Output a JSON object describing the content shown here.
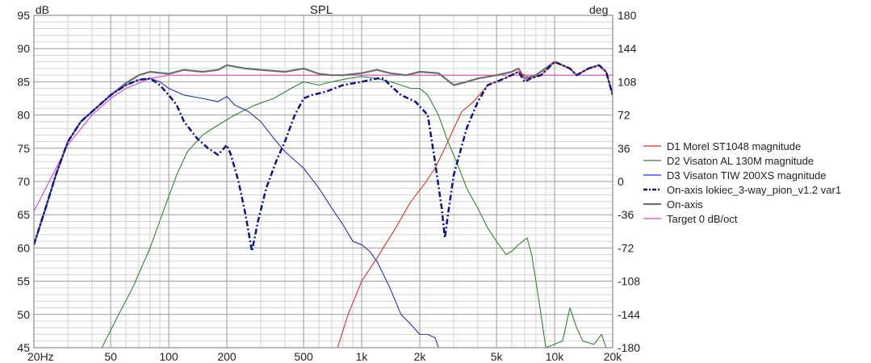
{
  "chart_data": {
    "type": "line",
    "title": "SPL",
    "left_unit": "dB",
    "right_unit": "deg",
    "x_scale": "log",
    "xlim": [
      20,
      20000
    ],
    "ylim": [
      45,
      95
    ],
    "y2lim": [
      -180,
      180
    ],
    "x_ticks": [
      {
        "value": 20,
        "label": "20Hz"
      },
      {
        "value": 50,
        "label": "50"
      },
      {
        "value": 100,
        "label": "100"
      },
      {
        "value": 200,
        "label": "200"
      },
      {
        "value": 500,
        "label": "500"
      },
      {
        "value": 1000,
        "label": "1k"
      },
      {
        "value": 2000,
        "label": "2k"
      },
      {
        "value": 5000,
        "label": "5k"
      },
      {
        "value": 10000,
        "label": "10k"
      },
      {
        "value": 20000,
        "label": "20k"
      }
    ],
    "y_ticks": [
      "95",
      "90",
      "85",
      "80",
      "75",
      "70",
      "65",
      "60",
      "55",
      "50",
      "45"
    ],
    "y2_ticks": [
      "180",
      "144",
      "108",
      "72",
      "36",
      "0",
      "-36",
      "-72",
      "-108",
      "-144",
      "-180"
    ],
    "grid": true,
    "legend_position": "right",
    "colors": {
      "d1": "#e0301e",
      "d2": "#2a8a2a",
      "d3": "#2030c8",
      "onaxis_var": "#0a1490",
      "onaxis": "#6e6e6e",
      "target": "#e040c8",
      "grid_major": "#9a9a9a",
      "grid_minor": "#d4d4d4"
    },
    "series": [
      {
        "name": "D1 Morel ST1048 magnitude",
        "color": "#e0301e",
        "style": "solid",
        "points": [
          [
            750,
            45
          ],
          [
            850,
            50
          ],
          [
            1000,
            55
          ],
          [
            1200,
            58.5
          ],
          [
            1500,
            63
          ],
          [
            1800,
            67
          ],
          [
            2100,
            69.5
          ],
          [
            2400,
            72
          ],
          [
            2700,
            75
          ],
          [
            3000,
            78
          ],
          [
            3300,
            80.5
          ],
          [
            3800,
            82
          ],
          [
            4500,
            84.5
          ],
          [
            5500,
            85.5
          ],
          [
            6500,
            86.5
          ],
          [
            7500,
            85.5
          ],
          [
            8500,
            86
          ],
          [
            10000,
            88
          ],
          [
            12000,
            87
          ],
          [
            13000,
            86
          ],
          [
            15000,
            87
          ],
          [
            17000,
            87.5
          ],
          [
            18500,
            86.5
          ],
          [
            20000,
            83
          ]
        ]
      },
      {
        "name": "D2 Visaton AL 130M magnitude",
        "color": "#2a8a2a",
        "style": "solid",
        "points": [
          [
            45,
            45
          ],
          [
            55,
            50
          ],
          [
            65,
            54
          ],
          [
            80,
            60
          ],
          [
            95,
            66
          ],
          [
            110,
            71
          ],
          [
            125,
            74.5
          ],
          [
            150,
            77
          ],
          [
            180,
            78.5
          ],
          [
            220,
            80
          ],
          [
            280,
            81.5
          ],
          [
            350,
            82.5
          ],
          [
            430,
            84
          ],
          [
            500,
            85
          ],
          [
            600,
            84.5
          ],
          [
            700,
            85
          ],
          [
            850,
            85.5
          ],
          [
            1000,
            85.8
          ],
          [
            1200,
            85.5
          ],
          [
            1400,
            85
          ],
          [
            1600,
            84.5
          ],
          [
            1800,
            84
          ],
          [
            2000,
            84
          ],
          [
            2200,
            83
          ],
          [
            2500,
            80
          ],
          [
            2800,
            76
          ],
          [
            3100,
            73
          ],
          [
            3500,
            69
          ],
          [
            4000,
            66
          ],
          [
            4500,
            63
          ],
          [
            5000,
            61
          ],
          [
            5600,
            59
          ],
          [
            6000,
            59.5
          ],
          [
            6500,
            60.5
          ],
          [
            7200,
            61.5
          ],
          [
            7600,
            59
          ],
          [
            8000,
            55
          ],
          [
            8500,
            50
          ],
          [
            9000,
            45
          ],
          [
            11000,
            46
          ],
          [
            12000,
            51
          ],
          [
            13000,
            48
          ],
          [
            14000,
            46
          ],
          [
            16000,
            45.5
          ],
          [
            17500,
            47
          ],
          [
            18500,
            45
          ]
        ]
      },
      {
        "name": "D3 Visaton TIW 200XS magnitude",
        "color": "#2030c8",
        "style": "solid",
        "points": [
          [
            20,
            60.5
          ],
          [
            23,
            66
          ],
          [
            26,
            71
          ],
          [
            30,
            76
          ],
          [
            35,
            79
          ],
          [
            40,
            80.5
          ],
          [
            50,
            83
          ],
          [
            60,
            84.5
          ],
          [
            70,
            85.3
          ],
          [
            80,
            85.5
          ],
          [
            90,
            85
          ],
          [
            100,
            84
          ],
          [
            120,
            83
          ],
          [
            150,
            82.5
          ],
          [
            180,
            82
          ],
          [
            200,
            82.8
          ],
          [
            220,
            81.5
          ],
          [
            260,
            80.5
          ],
          [
            300,
            79
          ],
          [
            350,
            76.5
          ],
          [
            400,
            74.5
          ],
          [
            500,
            72
          ],
          [
            600,
            69
          ],
          [
            700,
            66
          ],
          [
            800,
            63.5
          ],
          [
            900,
            61
          ],
          [
            1000,
            60.5
          ],
          [
            1100,
            59.5
          ],
          [
            1200,
            58
          ],
          [
            1400,
            54
          ],
          [
            1600,
            50
          ],
          [
            1800,
            48.5
          ],
          [
            2000,
            47
          ],
          [
            2200,
            47
          ],
          [
            2400,
            46.5
          ],
          [
            2500,
            45
          ]
        ]
      },
      {
        "name": "On-axis lokiec_3-way_pion_v1.2 var1",
        "color": "#0a1490",
        "style": "dashdot",
        "points": [
          [
            20,
            60.5
          ],
          [
            23,
            66
          ],
          [
            26,
            71
          ],
          [
            30,
            76
          ],
          [
            35,
            79
          ],
          [
            40,
            80.5
          ],
          [
            50,
            83
          ],
          [
            60,
            84.5
          ],
          [
            70,
            85.3
          ],
          [
            80,
            85.5
          ],
          [
            90,
            84.5
          ],
          [
            100,
            83
          ],
          [
            110,
            81.5
          ],
          [
            120,
            79
          ],
          [
            140,
            76.5
          ],
          [
            160,
            75
          ],
          [
            180,
            74
          ],
          [
            200,
            75.5
          ],
          [
            210,
            74
          ],
          [
            230,
            70
          ],
          [
            250,
            65
          ],
          [
            270,
            59.5
          ],
          [
            290,
            64
          ],
          [
            320,
            69
          ],
          [
            360,
            73
          ],
          [
            400,
            76
          ],
          [
            450,
            80
          ],
          [
            500,
            82.5
          ],
          [
            550,
            83
          ],
          [
            650,
            83.5
          ],
          [
            800,
            84.5
          ],
          [
            1000,
            85
          ],
          [
            1200,
            85.5
          ],
          [
            1300,
            85.5
          ],
          [
            1400,
            84.5
          ],
          [
            1600,
            83
          ],
          [
            1900,
            82
          ],
          [
            2200,
            80
          ],
          [
            2400,
            73
          ],
          [
            2600,
            66
          ],
          [
            2700,
            61.5
          ],
          [
            2800,
            65
          ],
          [
            3000,
            71
          ],
          [
            3500,
            78
          ],
          [
            4000,
            82
          ],
          [
            4500,
            84.5
          ],
          [
            5500,
            85.5
          ],
          [
            6500,
            86.5
          ],
          [
            7000,
            85
          ],
          [
            7500,
            85.5
          ],
          [
            8500,
            86
          ],
          [
            10000,
            88
          ],
          [
            12000,
            87
          ],
          [
            13000,
            86
          ],
          [
            15000,
            87
          ],
          [
            17000,
            87.5
          ],
          [
            18500,
            86.5
          ],
          [
            20000,
            83
          ]
        ]
      },
      {
        "name": "On-axis",
        "color": "#6e6e6e",
        "style": "solid",
        "points": [
          [
            20,
            60.5
          ],
          [
            23,
            66
          ],
          [
            26,
            71
          ],
          [
            30,
            76
          ],
          [
            35,
            79
          ],
          [
            40,
            80.5
          ],
          [
            50,
            83
          ],
          [
            60,
            84.8
          ],
          [
            70,
            86
          ],
          [
            80,
            86.5
          ],
          [
            100,
            86.2
          ],
          [
            120,
            86.8
          ],
          [
            150,
            86.5
          ],
          [
            180,
            86.8
          ],
          [
            200,
            87.5
          ],
          [
            250,
            87
          ],
          [
            300,
            86.8
          ],
          [
            400,
            86.5
          ],
          [
            500,
            87
          ],
          [
            600,
            86.2
          ],
          [
            700,
            86
          ],
          [
            800,
            86
          ],
          [
            1000,
            86.3
          ],
          [
            1200,
            86.8
          ],
          [
            1400,
            86.3
          ],
          [
            1700,
            86
          ],
          [
            2000,
            86.5
          ],
          [
            2500,
            86.3
          ],
          [
            3000,
            84.5
          ],
          [
            3500,
            85
          ],
          [
            4000,
            85.5
          ],
          [
            5000,
            86
          ],
          [
            6000,
            86.5
          ],
          [
            6500,
            87
          ],
          [
            7000,
            85.5
          ],
          [
            8000,
            86
          ],
          [
            10000,
            88
          ],
          [
            12000,
            87
          ],
          [
            13000,
            86
          ],
          [
            15000,
            87
          ],
          [
            17000,
            87.5
          ],
          [
            18500,
            86.5
          ],
          [
            20000,
            83
          ]
        ]
      },
      {
        "name": "Target 0 dB/oct",
        "color": "#e040c8",
        "style": "solid",
        "points": [
          [
            20,
            65.5
          ],
          [
            25,
            71
          ],
          [
            30,
            75.5
          ],
          [
            40,
            80
          ],
          [
            50,
            82.5
          ],
          [
            60,
            84
          ],
          [
            80,
            85.5
          ],
          [
            100,
            86
          ],
          [
            20000,
            86
          ]
        ]
      }
    ]
  }
}
